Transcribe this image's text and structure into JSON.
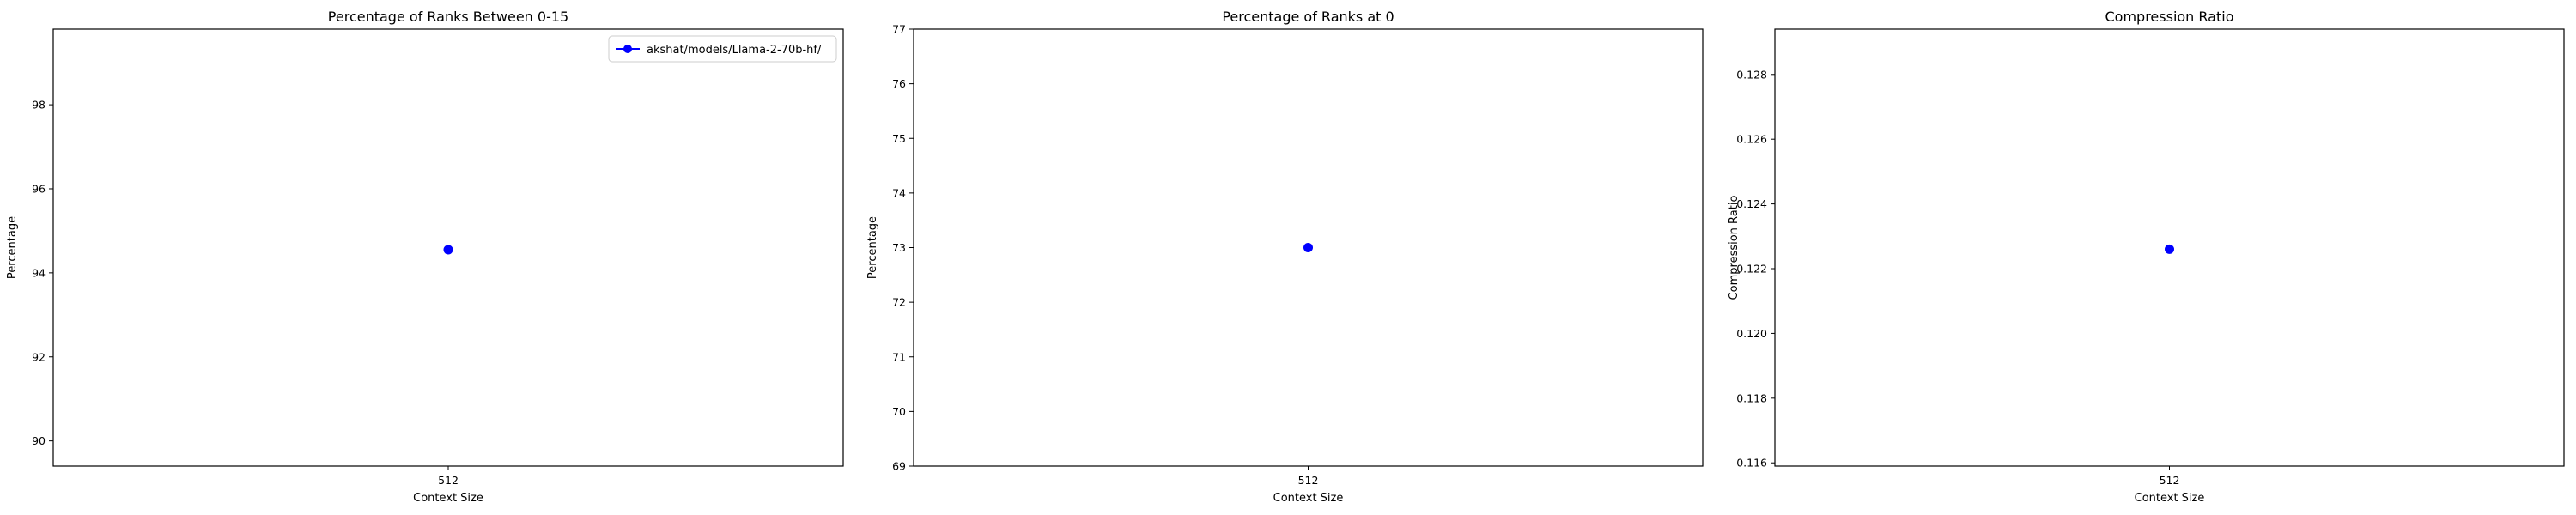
{
  "chart_data": [
    {
      "type": "line",
      "title": "Percentage of Ranks Between 0-15",
      "xlabel": "Context Size",
      "ylabel": "Percentage",
      "categories": [
        "512"
      ],
      "series": [
        {
          "name": "akshat/models/Llama-2-70b-hf/",
          "values": [
            94.55
          ]
        }
      ],
      "ylim": [
        89.4,
        99.8
      ],
      "yticks": [
        90,
        92,
        94,
        96,
        98
      ],
      "ytick_labels": [
        "90",
        "92",
        "94",
        "96",
        "98"
      ],
      "legend": "upper-right"
    },
    {
      "type": "line",
      "title": "Percentage of Ranks at 0",
      "xlabel": "Context Size",
      "ylabel": "Percentage",
      "categories": [
        "512"
      ],
      "series": [
        {
          "name": "akshat/models/Llama-2-70b-hf/",
          "values": [
            73.0
          ]
        }
      ],
      "ylim": [
        69,
        77
      ],
      "yticks": [
        69,
        70,
        71,
        72,
        73,
        74,
        75,
        76,
        77
      ],
      "ytick_labels": [
        "69",
        "70",
        "71",
        "72",
        "73",
        "74",
        "75",
        "76",
        "77"
      ],
      "legend": "none"
    },
    {
      "type": "line",
      "title": "Compression Ratio",
      "xlabel": "Context Size",
      "ylabel": "Compression Ratio",
      "categories": [
        "512"
      ],
      "series": [
        {
          "name": "akshat/models/Llama-2-70b-hf/",
          "values": [
            0.1226
          ]
        }
      ],
      "ylim": [
        0.1159,
        0.1294
      ],
      "yticks": [
        0.116,
        0.118,
        0.12,
        0.122,
        0.124,
        0.126,
        0.128
      ],
      "ytick_labels": [
        "0.116",
        "0.118",
        "0.120",
        "0.122",
        "0.124",
        "0.126",
        "0.128"
      ],
      "legend": "none"
    }
  ],
  "colors": {
    "series": "#0000ff",
    "axes": "#000000",
    "background": "#ffffff"
  }
}
